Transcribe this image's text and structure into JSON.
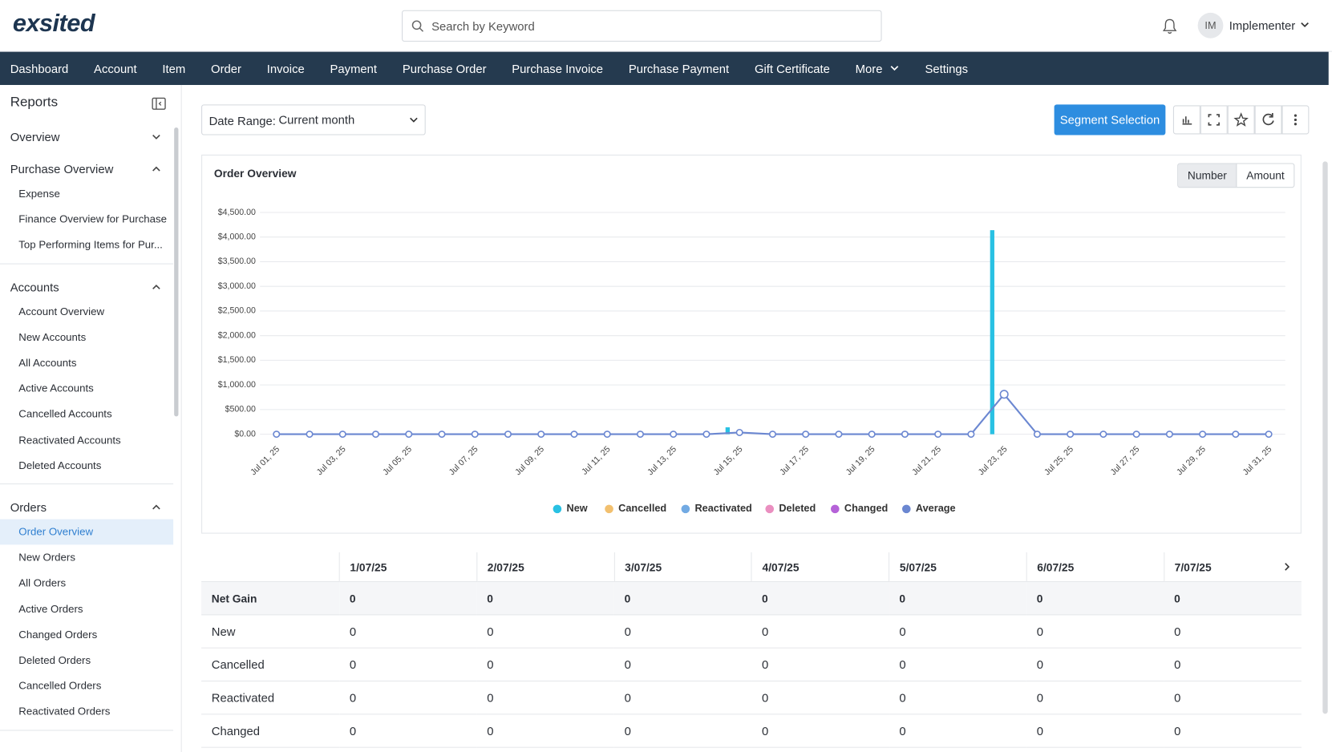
{
  "header": {
    "logo": "exsited",
    "search_placeholder": "Search by Keyword",
    "user_initials": "IM",
    "user_name": "Implementer"
  },
  "nav": [
    "Dashboard",
    "Account",
    "Item",
    "Order",
    "Invoice",
    "Payment",
    "Purchase Order",
    "Purchase Invoice",
    "Purchase Payment",
    "Gift Certificate",
    "More",
    "Settings"
  ],
  "sidebar": {
    "title": "Reports",
    "sections": [
      {
        "title": "Overview",
        "expanded": false,
        "items": []
      },
      {
        "title": "Purchase Overview",
        "expanded": true,
        "items": [
          "Expense",
          "Finance Overview for Purchase",
          "Top Performing Items for Pur..."
        ]
      },
      {
        "title": "Accounts",
        "expanded": true,
        "items": [
          "Account Overview",
          "New Accounts",
          "All Accounts",
          "Active Accounts",
          "Cancelled Accounts",
          "Reactivated Accounts",
          "Deleted Accounts"
        ]
      },
      {
        "title": "Orders",
        "expanded": true,
        "items": [
          "Order Overview",
          "New Orders",
          "All Orders",
          "Active Orders",
          "Changed Orders",
          "Deleted Orders",
          "Cancelled Orders",
          "Reactivated Orders"
        ]
      }
    ]
  },
  "toolbar": {
    "date_range_label": "Date Range:",
    "date_range_value": "Current month",
    "segment_button": "Segment Selection"
  },
  "chart_data": {
    "type": "bar",
    "title": "Order Overview",
    "toggle": [
      "Number",
      "Amount"
    ],
    "categories": [
      "Jul 01, 25",
      null,
      "Jul 03, 25",
      null,
      "Jul 05, 25",
      null,
      "Jul 07, 25",
      null,
      "Jul 09, 25",
      null,
      "Jul 11, 25",
      null,
      "Jul 13, 25",
      null,
      "Jul 15, 25",
      null,
      "Jul 17, 25",
      null,
      "Jul 19, 25",
      null,
      "Jul 21, 25",
      null,
      "Jul 23, 25",
      null,
      "Jul 25, 25",
      null,
      "Jul 27, 25",
      null,
      "Jul 29, 25",
      null,
      "Jul 31, 25"
    ],
    "series": [
      {
        "name": "New",
        "color": "#29c1e3",
        "values": [
          0,
          0,
          0,
          0,
          0,
          0,
          0,
          0,
          0,
          0,
          0,
          0,
          0,
          0,
          140,
          0,
          0,
          0,
          0,
          0,
          0,
          0,
          4140,
          0,
          0,
          0,
          0,
          0,
          0,
          0,
          0
        ]
      },
      {
        "name": "Cancelled",
        "color": "#f2c06f",
        "values": [
          0,
          0,
          0,
          0,
          0,
          0,
          0,
          0,
          0,
          0,
          0,
          0,
          0,
          0,
          0,
          0,
          0,
          0,
          0,
          0,
          0,
          0,
          0,
          0,
          0,
          0,
          0,
          0,
          0,
          0,
          0
        ]
      },
      {
        "name": "Reactivated",
        "color": "#72aae3",
        "values": [
          0,
          0,
          0,
          0,
          0,
          0,
          0,
          0,
          0,
          0,
          0,
          0,
          0,
          0,
          0,
          0,
          0,
          0,
          0,
          0,
          0,
          0,
          0,
          0,
          0,
          0,
          0,
          0,
          0,
          0,
          0
        ]
      },
      {
        "name": "Deleted",
        "color": "#ea8fc0",
        "values": [
          0,
          0,
          0,
          0,
          0,
          0,
          0,
          0,
          0,
          0,
          0,
          0,
          0,
          0,
          0,
          0,
          0,
          0,
          0,
          0,
          0,
          0,
          0,
          0,
          0,
          0,
          0,
          0,
          0,
          0,
          0
        ]
      },
      {
        "name": "Changed",
        "color": "#b562d8",
        "values": [
          0,
          0,
          0,
          0,
          0,
          0,
          0,
          0,
          0,
          0,
          0,
          0,
          0,
          0,
          0,
          0,
          0,
          0,
          0,
          0,
          0,
          0,
          0,
          0,
          0,
          0,
          0,
          0,
          0,
          0,
          0
        ]
      },
      {
        "name": "Average",
        "color": "#6b87d1",
        "type": "line",
        "values": [
          0,
          0,
          0,
          0,
          0,
          0,
          0,
          0,
          0,
          0,
          0,
          0,
          0,
          0,
          35,
          0,
          0,
          0,
          0,
          0,
          0,
          0,
          810,
          0,
          0,
          0,
          0,
          0,
          0,
          0,
          0
        ]
      }
    ],
    "ylim": [
      0,
      4500
    ],
    "yticks": [
      {
        "value": 0,
        "label": "$0.00"
      },
      {
        "value": 500,
        "label": "$500.00"
      },
      {
        "value": 1000,
        "label": "$1,000.00"
      },
      {
        "value": 1500,
        "label": "$1,500.00"
      },
      {
        "value": 2000,
        "label": "$2,000.00"
      },
      {
        "value": 2500,
        "label": "$2,500.00"
      },
      {
        "value": 3000,
        "label": "$3,000.00"
      },
      {
        "value": 3500,
        "label": "$3,500.00"
      },
      {
        "value": 4000,
        "label": "$4,000.00"
      },
      {
        "value": 4500,
        "label": "$4,500.00"
      }
    ],
    "grid": true
  },
  "table": {
    "columns": [
      "1/07/25",
      "2/07/25",
      "3/07/25",
      "4/07/25",
      "5/07/25",
      "6/07/25",
      "7/07/25"
    ],
    "rows": [
      [
        "Net Gain",
        0,
        0,
        0,
        0,
        0,
        0,
        0
      ],
      [
        "New",
        0,
        0,
        0,
        0,
        0,
        0,
        0
      ],
      [
        "Cancelled",
        0,
        0,
        0,
        0,
        0,
        0,
        0
      ],
      [
        "Reactivated",
        0,
        0,
        0,
        0,
        0,
        0,
        0
      ],
      [
        "Changed",
        0,
        0,
        0,
        0,
        0,
        0,
        0
      ]
    ]
  }
}
